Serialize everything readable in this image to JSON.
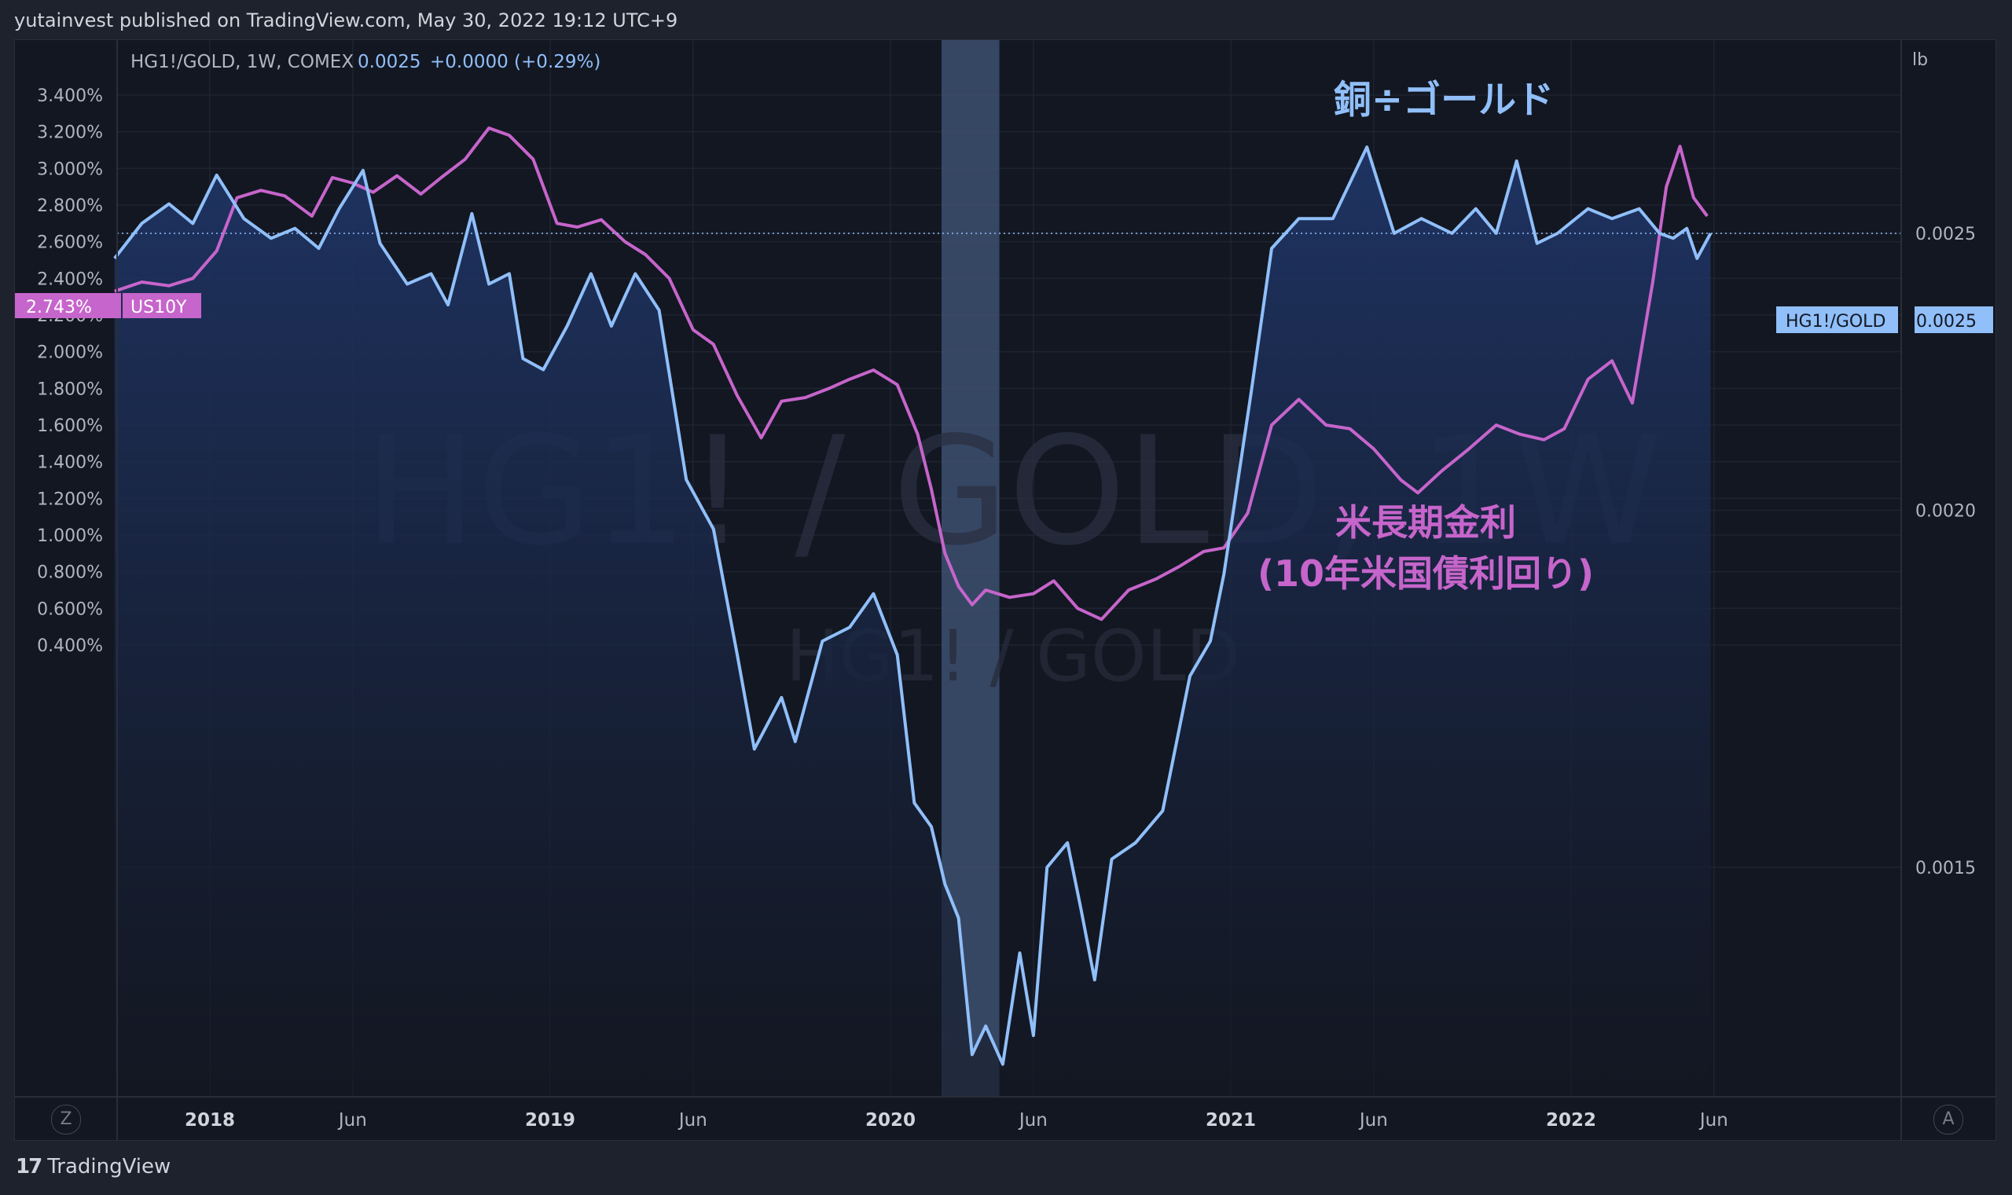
{
  "header": {
    "published": "yutainvest published on TradingView.com, May 30, 2022 19:12 UTC+9"
  },
  "legend": {
    "symbol": "HG1!/GOLD, 1W, COMEX",
    "value": "0.0025",
    "change": "+0.0000 (+0.29%)"
  },
  "watermark": {
    "main": "HG1! / GOLD, 1W",
    "sub": "HG1! / GOLD"
  },
  "right_axis_unit": "lb",
  "annotations": {
    "copper_gold": "銅÷ゴールド",
    "yield_line1": "米長期金利",
    "yield_line2": "(10年米国債利回り)"
  },
  "price_tags": {
    "us10y_value": "2.743%",
    "us10y_name": "US10Y",
    "ratio_name": "HG1!/GOLD",
    "ratio_value": "0.0025"
  },
  "axis_buttons": {
    "left": "Z",
    "right": "A"
  },
  "footer": {
    "brand": "TradingView"
  },
  "colors": {
    "ratio": "#90bff9",
    "yield": "#c665cb",
    "highlight": "#3b4d6b",
    "background": "#131722"
  },
  "chart_data": {
    "type": "line",
    "title": "",
    "highlight_period": {
      "from": 2020.15,
      "to": 2020.32
    },
    "x_ticks": [
      {
        "label": "2018",
        "t": 2018.0,
        "bold": true
      },
      {
        "label": "Jun",
        "t": 2018.42,
        "bold": false
      },
      {
        "label": "2019",
        "t": 2019.0,
        "bold": true
      },
      {
        "label": "Jun",
        "t": 2019.42,
        "bold": false
      },
      {
        "label": "2020",
        "t": 2020.0,
        "bold": true
      },
      {
        "label": "Jun",
        "t": 2020.42,
        "bold": false
      },
      {
        "label": "2021",
        "t": 2021.0,
        "bold": true
      },
      {
        "label": "Jun",
        "t": 2021.42,
        "bold": false
      },
      {
        "label": "2022",
        "t": 2022.0,
        "bold": true
      },
      {
        "label": "Jun",
        "t": 2022.42,
        "bold": false
      }
    ],
    "left_axis": {
      "name": "US10Y",
      "unit": "%",
      "ticks": [
        "3.400%",
        "3.200%",
        "3.000%",
        "2.800%",
        "2.600%",
        "2.400%",
        "2.200%",
        "2.000%",
        "1.800%",
        "1.600%",
        "1.400%",
        "1.200%",
        "1.000%",
        "0.800%",
        "0.600%",
        "0.400%"
      ],
      "tick_values": [
        3.4,
        3.2,
        3.0,
        2.8,
        2.6,
        2.4,
        2.2,
        2.0,
        1.8,
        1.6,
        1.4,
        1.2,
        1.0,
        0.8,
        0.6,
        0.4
      ]
    },
    "right_axis": {
      "name": "HG1!/GOLD",
      "ticks": [
        "0.0025",
        "0.0020",
        "0.0015"
      ],
      "tick_values": [
        0.0025,
        0.002,
        0.0015
      ]
    },
    "series": [
      {
        "name": "HG1!/GOLD",
        "axis": "right",
        "points": [
          [
            2017.72,
            0.00245
          ],
          [
            2017.8,
            0.00252
          ],
          [
            2017.88,
            0.00256
          ],
          [
            2017.95,
            0.00252
          ],
          [
            2018.02,
            0.00262
          ],
          [
            2018.1,
            0.00253
          ],
          [
            2018.18,
            0.00249
          ],
          [
            2018.25,
            0.00251
          ],
          [
            2018.32,
            0.00247
          ],
          [
            2018.38,
            0.00255
          ],
          [
            2018.45,
            0.00263
          ],
          [
            2018.5,
            0.00248
          ],
          [
            2018.58,
            0.0024
          ],
          [
            2018.65,
            0.00242
          ],
          [
            2018.7,
            0.00236
          ],
          [
            2018.77,
            0.00254
          ],
          [
            2018.82,
            0.0024
          ],
          [
            2018.88,
            0.00242
          ],
          [
            2018.92,
            0.00226
          ],
          [
            2018.98,
            0.00224
          ],
          [
            2019.05,
            0.00232
          ],
          [
            2019.12,
            0.00242
          ],
          [
            2019.18,
            0.00232
          ],
          [
            2019.25,
            0.00242
          ],
          [
            2019.32,
            0.00235
          ],
          [
            2019.4,
            0.00205
          ],
          [
            2019.48,
            0.00197
          ],
          [
            2019.55,
            0.00178
          ],
          [
            2019.6,
            0.00165
          ],
          [
            2019.68,
            0.00172
          ],
          [
            2019.72,
            0.00166
          ],
          [
            2019.8,
            0.0018
          ],
          [
            2019.88,
            0.00182
          ],
          [
            2019.95,
            0.00187
          ],
          [
            2020.02,
            0.00178
          ],
          [
            2020.07,
            0.00158
          ],
          [
            2020.12,
            0.00155
          ],
          [
            2020.16,
            0.00148
          ],
          [
            2020.2,
            0.00144
          ],
          [
            2020.24,
            0.00129
          ],
          [
            2020.28,
            0.00132
          ],
          [
            2020.33,
            0.00128
          ],
          [
            2020.38,
            0.0014
          ],
          [
            2020.42,
            0.00131
          ],
          [
            2020.46,
            0.0015
          ],
          [
            2020.52,
            0.00153
          ],
          [
            2020.56,
            0.00145
          ],
          [
            2020.6,
            0.00137
          ],
          [
            2020.65,
            0.00151
          ],
          [
            2020.72,
            0.00153
          ],
          [
            2020.8,
            0.00157
          ],
          [
            2020.88,
            0.00175
          ],
          [
            2020.94,
            0.0018
          ],
          [
            2020.98,
            0.0019
          ],
          [
            2021.06,
            0.0022
          ],
          [
            2021.12,
            0.00247
          ],
          [
            2021.2,
            0.00253
          ],
          [
            2021.3,
            0.00253
          ],
          [
            2021.4,
            0.00268
          ],
          [
            2021.48,
            0.0025
          ],
          [
            2021.56,
            0.00253
          ],
          [
            2021.65,
            0.0025
          ],
          [
            2021.72,
            0.00255
          ],
          [
            2021.78,
            0.0025
          ],
          [
            2021.84,
            0.00265
          ],
          [
            2021.9,
            0.00248
          ],
          [
            2021.96,
            0.0025
          ],
          [
            2022.05,
            0.00255
          ],
          [
            2022.12,
            0.00253
          ],
          [
            2022.2,
            0.00255
          ],
          [
            2022.26,
            0.0025
          ],
          [
            2022.3,
            0.00249
          ],
          [
            2022.34,
            0.00251
          ],
          [
            2022.37,
            0.00245
          ],
          [
            2022.41,
            0.0025
          ]
        ]
      },
      {
        "name": "US10Y",
        "axis": "left",
        "points": [
          [
            2017.72,
            2.33
          ],
          [
            2017.8,
            2.38
          ],
          [
            2017.88,
            2.36
          ],
          [
            2017.95,
            2.4
          ],
          [
            2018.02,
            2.55
          ],
          [
            2018.08,
            2.84
          ],
          [
            2018.15,
            2.88
          ],
          [
            2018.22,
            2.85
          ],
          [
            2018.3,
            2.74
          ],
          [
            2018.36,
            2.95
          ],
          [
            2018.42,
            2.92
          ],
          [
            2018.48,
            2.87
          ],
          [
            2018.55,
            2.96
          ],
          [
            2018.62,
            2.86
          ],
          [
            2018.68,
            2.95
          ],
          [
            2018.75,
            3.05
          ],
          [
            2018.82,
            3.22
          ],
          [
            2018.88,
            3.18
          ],
          [
            2018.95,
            3.05
          ],
          [
            2019.02,
            2.7
          ],
          [
            2019.08,
            2.68
          ],
          [
            2019.15,
            2.72
          ],
          [
            2019.22,
            2.6
          ],
          [
            2019.28,
            2.53
          ],
          [
            2019.35,
            2.4
          ],
          [
            2019.42,
            2.12
          ],
          [
            2019.48,
            2.04
          ],
          [
            2019.55,
            1.76
          ],
          [
            2019.62,
            1.53
          ],
          [
            2019.68,
            1.73
          ],
          [
            2019.75,
            1.75
          ],
          [
            2019.82,
            1.8
          ],
          [
            2019.88,
            1.85
          ],
          [
            2019.95,
            1.9
          ],
          [
            2020.02,
            1.82
          ],
          [
            2020.08,
            1.55
          ],
          [
            2020.12,
            1.25
          ],
          [
            2020.16,
            0.9
          ],
          [
            2020.2,
            0.72
          ],
          [
            2020.24,
            0.62
          ],
          [
            2020.28,
            0.7
          ],
          [
            2020.35,
            0.66
          ],
          [
            2020.42,
            0.68
          ],
          [
            2020.48,
            0.75
          ],
          [
            2020.55,
            0.6
          ],
          [
            2020.62,
            0.54
          ],
          [
            2020.7,
            0.7
          ],
          [
            2020.78,
            0.76
          ],
          [
            2020.85,
            0.83
          ],
          [
            2020.92,
            0.91
          ],
          [
            2020.98,
            0.93
          ],
          [
            2021.05,
            1.12
          ],
          [
            2021.12,
            1.6
          ],
          [
            2021.2,
            1.74
          ],
          [
            2021.28,
            1.6
          ],
          [
            2021.35,
            1.58
          ],
          [
            2021.42,
            1.47
          ],
          [
            2021.5,
            1.3
          ],
          [
            2021.55,
            1.23
          ],
          [
            2021.62,
            1.35
          ],
          [
            2021.7,
            1.47
          ],
          [
            2021.78,
            1.6
          ],
          [
            2021.85,
            1.55
          ],
          [
            2021.92,
            1.52
          ],
          [
            2021.98,
            1.58
          ],
          [
            2022.05,
            1.85
          ],
          [
            2022.12,
            1.95
          ],
          [
            2022.18,
            1.72
          ],
          [
            2022.24,
            2.38
          ],
          [
            2022.28,
            2.9
          ],
          [
            2022.32,
            3.12
          ],
          [
            2022.36,
            2.84
          ],
          [
            2022.4,
            2.74
          ]
        ]
      }
    ]
  }
}
